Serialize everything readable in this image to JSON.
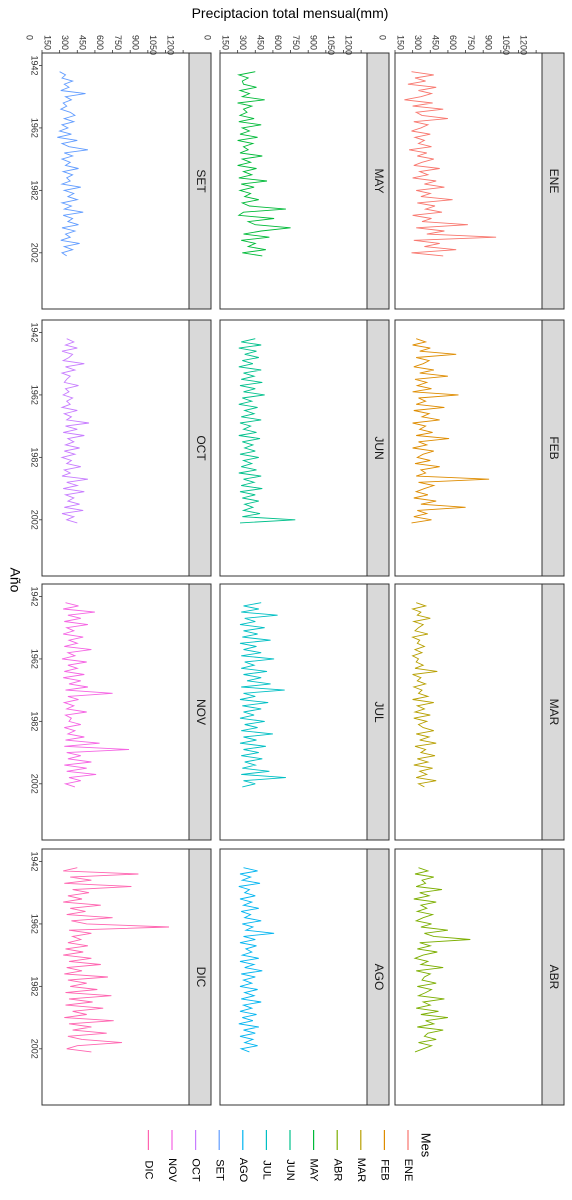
{
  "chart_data": {
    "type": "line",
    "facet_rows": 3,
    "facet_cols": 4,
    "xlabel": "Año",
    "ylabel": "Preciptacion total mensual(mm)",
    "xlim": [
      1938,
      2020
    ],
    "ylim": [
      0,
      1250
    ],
    "x_ticks": [
      1942,
      1962,
      1982,
      2002
    ],
    "y_ticks": [
      0,
      150,
      300,
      450,
      600,
      750,
      900,
      1050,
      1200
    ],
    "grid": false,
    "legend_position": "bottom",
    "legend_title": "Mes",
    "series": [
      {
        "name": "ENE",
        "color": "#F8766D",
        "start_year": 1944,
        "values": [
          140,
          330,
          170,
          260,
          110,
          350,
          200,
          310,
          220,
          80,
          320,
          150,
          410,
          180,
          230,
          450,
          160,
          280,
          220,
          140,
          300,
          170,
          250,
          200,
          310,
          120,
          270,
          190,
          330,
          230,
          160,
          380,
          210,
          280,
          150,
          350,
          250,
          420,
          180,
          300,
          220,
          490,
          190,
          340,
          260,
          400,
          150,
          310,
          230,
          620,
          180,
          420,
          270,
          860,
          160,
          380,
          250,
          520,
          140,
          410
        ]
      },
      {
        "name": "FEB",
        "color": "#DE8C00",
        "start_year": 1944,
        "values": [
          180,
          260,
          150,
          300,
          210,
          520,
          180,
          290,
          240,
          160,
          330,
          210,
          450,
          170,
          270,
          190,
          310,
          150,
          540,
          200,
          260,
          180,
          420,
          160,
          290,
          230,
          380,
          150,
          260,
          210,
          320,
          180,
          460,
          200,
          270,
          150,
          330,
          240,
          190,
          300,
          170,
          380,
          220,
          260,
          180,
          800,
          200,
          330,
          250,
          180,
          280,
          160,
          350,
          220,
          600,
          190,
          270,
          160,
          310,
          140
        ]
      },
      {
        "name": "MAR",
        "color": "#B79F00",
        "start_year": 1944,
        "values": [
          180,
          260,
          150,
          220,
          190,
          300,
          160,
          240,
          200,
          170,
          280,
          150,
          210,
          190,
          250,
          170,
          230,
          150,
          200,
          180,
          240,
          170,
          360,
          150,
          220,
          190,
          260,
          160,
          230,
          200,
          280,
          150,
          330,
          190,
          250,
          170,
          300,
          160,
          270,
          200,
          240,
          330,
          180,
          290,
          210,
          350,
          170,
          260,
          220,
          340,
          190,
          280,
          160,
          320,
          210,
          270,
          180,
          350,
          200,
          250
        ]
      },
      {
        "name": "ABR",
        "color": "#7CAE00",
        "start_year": 1944,
        "values": [
          200,
          280,
          170,
          330,
          230,
          260,
          180,
          400,
          210,
          290,
          160,
          350,
          220,
          270,
          190,
          320,
          240,
          180,
          310,
          220,
          450,
          250,
          330,
          640,
          210,
          300,
          190,
          360,
          240,
          170,
          280,
          220,
          410,
          180,
          300,
          250,
          230,
          350,
          190,
          310,
          260,
          200,
          420,
          240,
          300,
          180,
          370,
          220,
          450,
          260,
          330,
          190,
          410,
          280,
          250,
          350,
          200,
          310,
          240,
          170
        ]
      },
      {
        "name": "MAY",
        "color": "#00BA38",
        "start_year": 1944,
        "values": [
          300,
          160,
          240,
          190,
          200,
          310,
          170,
          250,
          190,
          380,
          150,
          270,
          200,
          230,
          170,
          290,
          160,
          350,
          190,
          250,
          170,
          320,
          150,
          280,
          200,
          240,
          170,
          360,
          190,
          260,
          150,
          310,
          200,
          270,
          160,
          400,
          180,
          290,
          170,
          260,
          210,
          330,
          190,
          250,
          560,
          200,
          160,
          460,
          240,
          300,
          600,
          350,
          200,
          420,
          180,
          300,
          240,
          390,
          190,
          360
        ]
      },
      {
        "name": "JUN",
        "color": "#00C08B",
        "start_year": 1944,
        "values": [
          300,
          180,
          350,
          160,
          310,
          210,
          330,
          190,
          280,
          160,
          350,
          200,
          290,
          180,
          360,
          170,
          300,
          200,
          380,
          190,
          270,
          160,
          320,
          210,
          290,
          180,
          350,
          170,
          260,
          200,
          310,
          160,
          340,
          190,
          280,
          210,
          300,
          170,
          330,
          200,
          270,
          180,
          310,
          160,
          350,
          200,
          290,
          180,
          360,
          170,
          300,
          190,
          330,
          210,
          280,
          200,
          340,
          190,
          640,
          170
        ]
      },
      {
        "name": "JUL",
        "color": "#00BFC4",
        "start_year": 1944,
        "values": [
          350,
          200,
          330,
          180,
          490,
          210,
          300,
          170,
          380,
          200,
          320,
          190,
          430,
          170,
          310,
          200,
          350,
          180,
          460,
          210,
          290,
          180,
          400,
          200,
          350,
          230,
          430,
          180,
          550,
          200,
          300,
          170,
          410,
          190,
          350,
          200,
          290,
          170,
          380,
          210,
          320,
          180,
          450,
          200,
          310,
          170,
          390,
          200,
          330,
          180,
          360,
          210,
          300,
          190,
          420,
          180,
          560,
          200,
          300,
          190
        ]
      },
      {
        "name": "AGO",
        "color": "#00B4F0",
        "start_year": 1944,
        "values": [
          200,
          320,
          170,
          260,
          190,
          340,
          160,
          250,
          210,
          300,
          170,
          270,
          200,
          330,
          180,
          260,
          210,
          350,
          190,
          280,
          220,
          460,
          200,
          300,
          170,
          310,
          220,
          270,
          190,
          330,
          170,
          290,
          210,
          360,
          180,
          300,
          200,
          270,
          170,
          320,
          210,
          290,
          180,
          350,
          200,
          270,
          170,
          310,
          190,
          280,
          160,
          330,
          200,
          300,
          170,
          280,
          210,
          320,
          180,
          250
        ]
      },
      {
        "name": "SET",
        "color": "#619CFF",
        "start_year": 1944,
        "values": [
          150,
          200,
          170,
          260,
          190,
          230,
          160,
          370,
          200,
          250,
          180,
          210,
          160,
          240,
          280,
          190,
          270,
          170,
          220,
          150,
          250,
          130,
          300,
          170,
          230,
          390,
          190,
          260,
          170,
          240,
          200,
          310,
          180,
          260,
          210,
          240,
          170,
          330,
          190,
          270,
          220,
          300,
          170,
          250,
          190,
          350,
          180,
          260,
          220,
          310,
          170,
          280,
          200,
          240,
          160,
          320,
          190,
          260,
          170,
          210
        ]
      },
      {
        "name": "OCT",
        "color": "#C77CFF",
        "start_year": 1944,
        "values": [
          210,
          270,
          200,
          300,
          170,
          260,
          230,
          180,
          360,
          200,
          280,
          170,
          240,
          210,
          190,
          310,
          200,
          230,
          180,
          260,
          210,
          240,
          170,
          300,
          190,
          250,
          210,
          400,
          200,
          300,
          180,
          360,
          220,
          270,
          200,
          320,
          190,
          280,
          170,
          250,
          210,
          330,
          190,
          240,
          170,
          390,
          210,
          300,
          180,
          360,
          200,
          270,
          220,
          320,
          190,
          350,
          170,
          270,
          210,
          300
        ]
      },
      {
        "name": "NOV",
        "color": "#F564E3",
        "start_year": 1944,
        "values": [
          200,
          310,
          180,
          450,
          220,
          330,
          190,
          390,
          210,
          270,
          180,
          350,
          230,
          300,
          190,
          420,
          220,
          280,
          170,
          380,
          220,
          300,
          190,
          360,
          180,
          330,
          230,
          390,
          200,
          600,
          220,
          310,
          190,
          270,
          210,
          380,
          200,
          250,
          230,
          330,
          190,
          280,
          220,
          360,
          200,
          490,
          190,
          740,
          210,
          330,
          220,
          420,
          190,
          380,
          210,
          460,
          230,
          330,
          200,
          280
        ]
      },
      {
        "name": "DIC",
        "color": "#FF64B0",
        "start_year": 1944,
        "values": [
          300,
          180,
          820,
          240,
          420,
          190,
          760,
          260,
          400,
          220,
          340,
          180,
          500,
          240,
          370,
          210,
          600,
          250,
          380,
          1080,
          230,
          420,
          260,
          330,
          220,
          390,
          200,
          350,
          180,
          420,
          230,
          500,
          210,
          340,
          190,
          560,
          220,
          380,
          240,
          470,
          200,
          590,
          230,
          430,
          200,
          520,
          260,
          380,
          190,
          610,
          230,
          420,
          260,
          550,
          220,
          340,
          680,
          300,
          210,
          420
        ]
      }
    ]
  }
}
